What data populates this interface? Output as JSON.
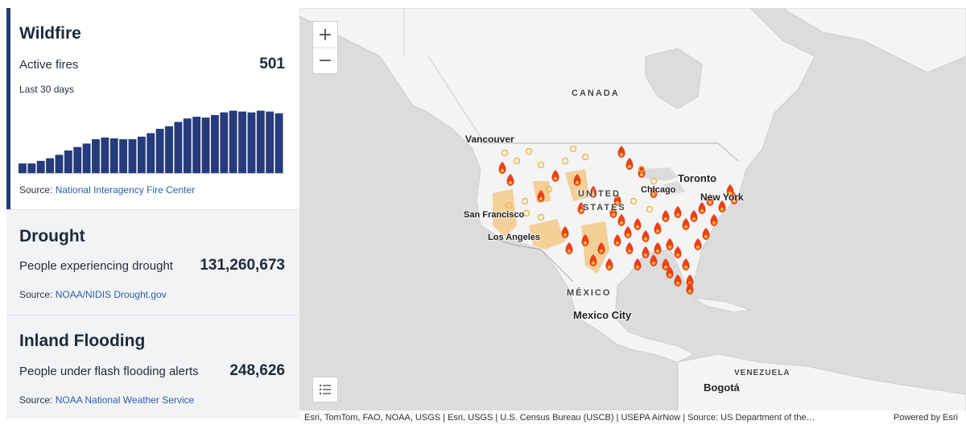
{
  "wildfire": {
    "title": "Wildfire",
    "metric_label": "Active fires",
    "metric_value": "501",
    "period": "Last 30 days",
    "source_prefix": "Source:",
    "source_link": "National Interagency Fire Center",
    "bar_color": "#253b7c"
  },
  "drought": {
    "title": "Drought",
    "metric_label": "People experiencing drought",
    "metric_value": "131,260,673",
    "source_prefix": "Source:",
    "source_link": "NOAA/NIDIS Drought.gov"
  },
  "flooding": {
    "title": "Inland Flooding",
    "metric_label": "People under flash flooding alerts",
    "metric_value": "248,626",
    "source_prefix": "Source:",
    "source_link": "NOAA National Weather Service"
  },
  "chart_data": {
    "type": "bar",
    "title": "",
    "xlabel": "",
    "ylabel": "",
    "values": [
      12,
      12,
      15,
      18,
      22,
      27,
      31,
      35,
      40,
      42,
      41,
      40,
      40,
      43,
      47,
      52,
      55,
      60,
      64,
      66,
      65,
      68,
      71,
      73,
      72,
      71,
      73,
      72,
      70
    ],
    "ylim": [
      0,
      80
    ],
    "grid": false
  },
  "map": {
    "zoom_in": "+",
    "zoom_out": "−",
    "labels": {
      "canada": "CANADA",
      "united": "UNITED",
      "states": "STATES",
      "mexico": "MÉXICO",
      "vancouver": "Vancouver",
      "san_francisco": "San Francisco",
      "los_angeles": "Los Angeles",
      "chicago": "Chicago",
      "toronto": "Toronto",
      "new_york": "New York",
      "mexico_city": "Mexico City",
      "venezuela": "VENEZUELA",
      "bogota": "Bogotá"
    },
    "attribution": "Esri, TomTom, FAO, NOAA, USGS | Esri, USGS | U.S. Census Bureau (USCB) | USEPA AirNow | Source: US Department of the…",
    "powered_by": "Powered by Esri",
    "colors": {
      "land": "#f4f4f4",
      "water": "#dcdcdc",
      "fire": "#e8401c",
      "drought": "#f5c987"
    }
  }
}
